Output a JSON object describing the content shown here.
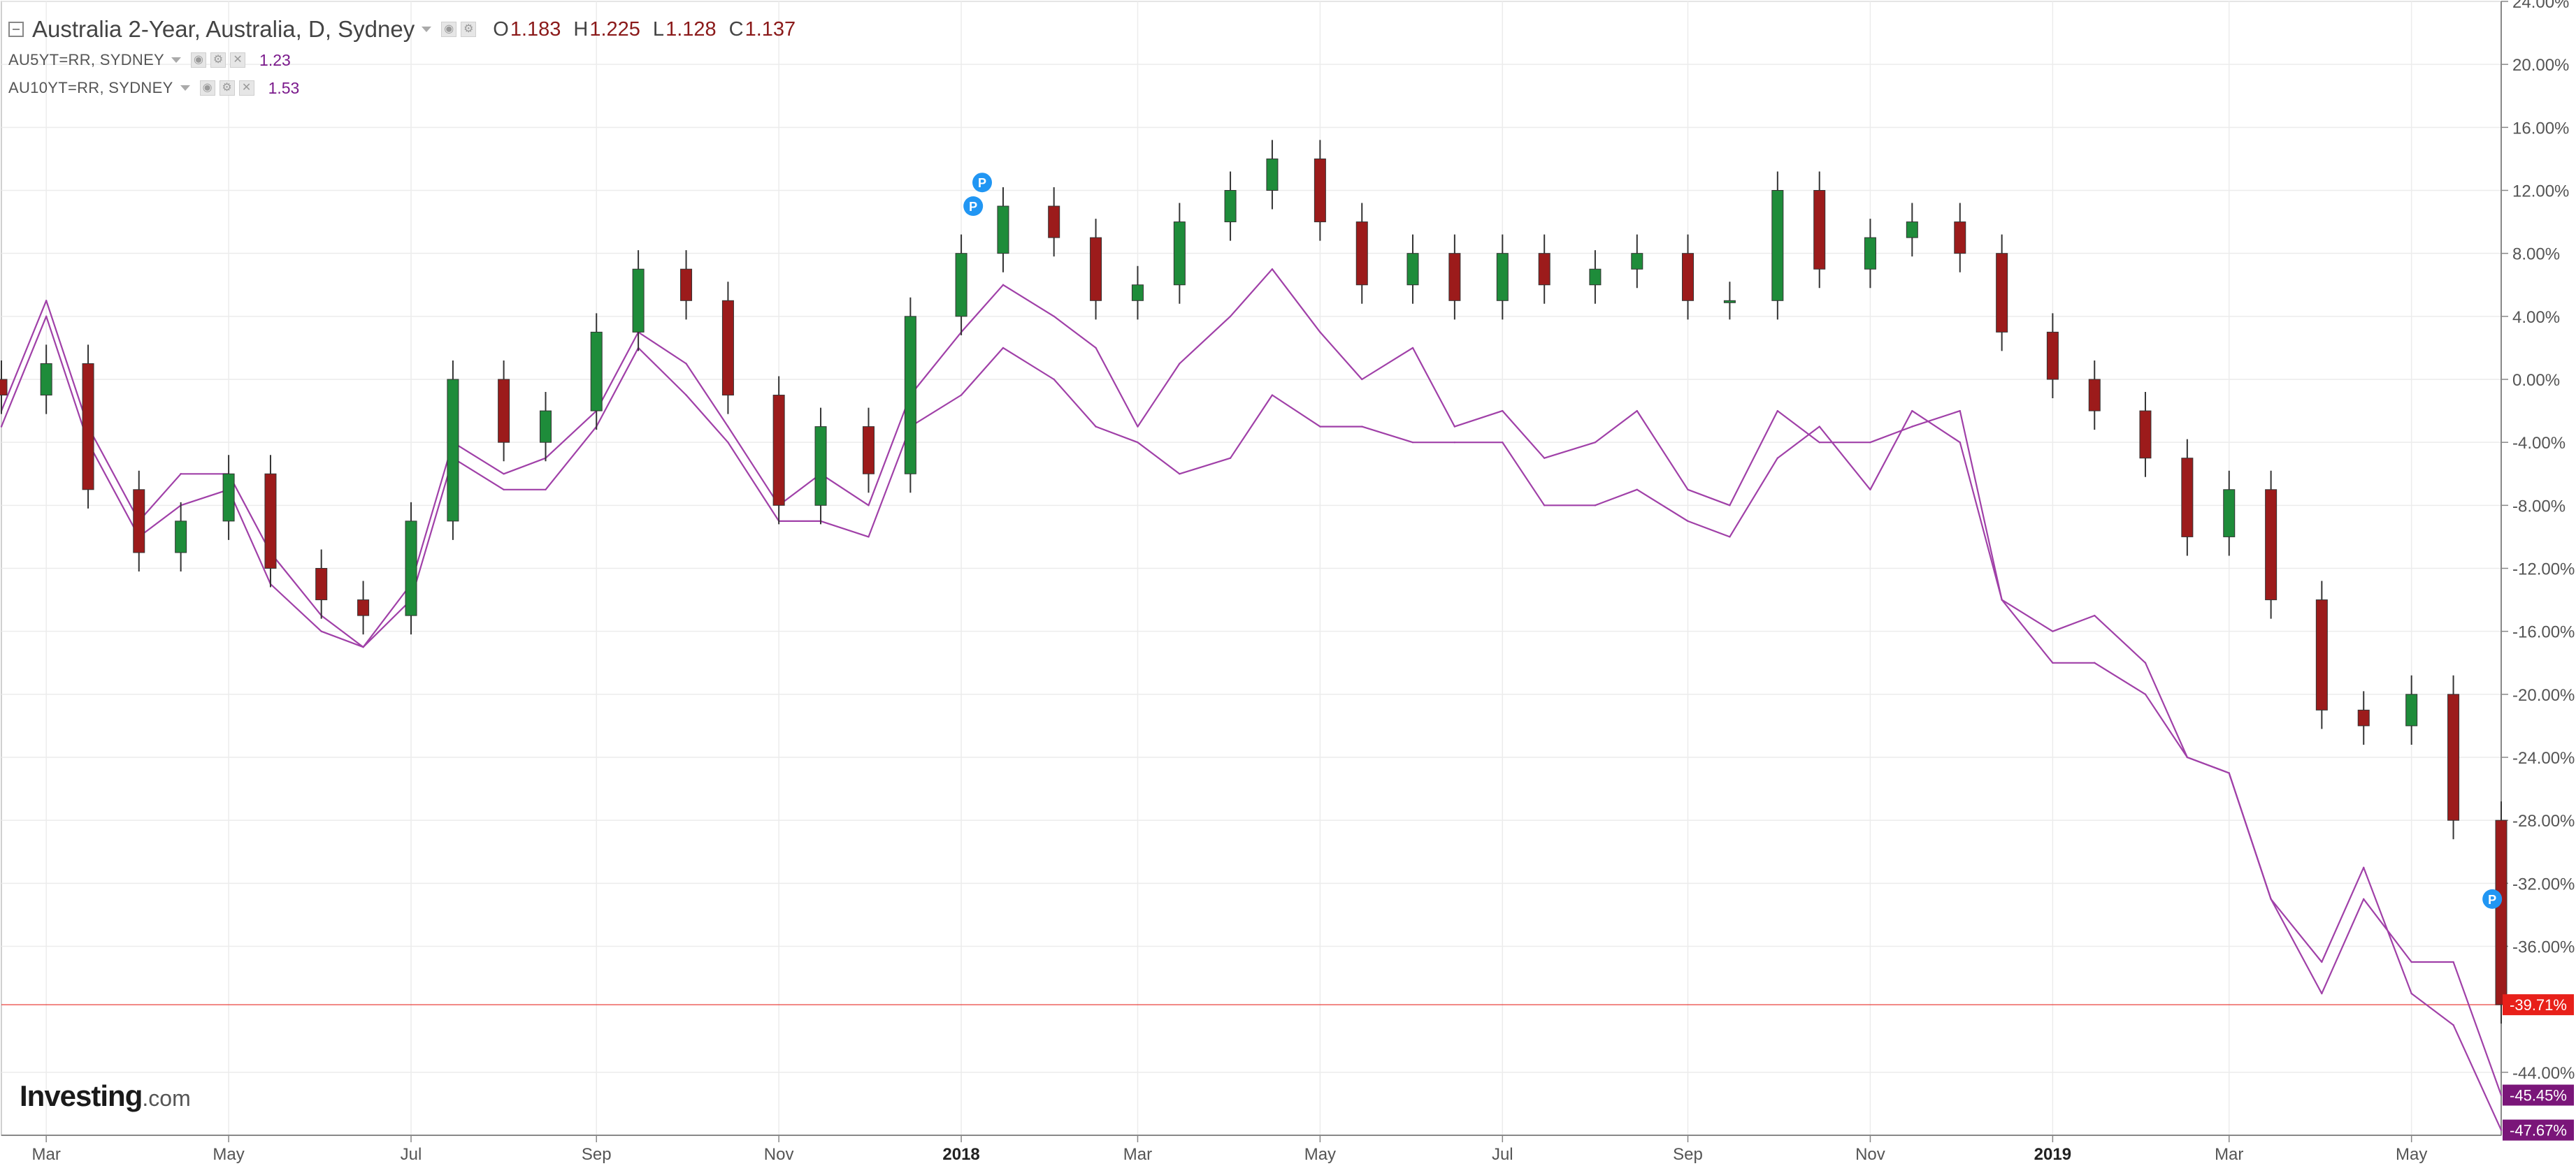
{
  "legend": {
    "main_title": "Australia 2-Year, Australia, D, Sydney",
    "ohlc": {
      "o_label": "O",
      "o": "1.183",
      "h_label": "H",
      "h": "1.225",
      "l_label": "L",
      "l": "1.128",
      "c_label": "C",
      "c": "1.137"
    },
    "sub": [
      {
        "label": "AU5YT=RR, SYDNEY",
        "value": "1.23"
      },
      {
        "label": "AU10YT=RR, SYDNEY",
        "value": "1.53"
      }
    ]
  },
  "logo": {
    "text": "Investing",
    "suffix": ".com"
  },
  "colors": {
    "up": "#1e8c3a",
    "down": "#9c1b1b",
    "compare_line": "#a040a8",
    "last_price": "#e8201a",
    "label_bg": "#7a1679"
  },
  "icons": [
    "collapse-icon",
    "caret-down-icon",
    "settings-icon",
    "visibility-icon",
    "close-icon",
    "publication-marker-icon"
  ],
  "chart_data": {
    "type": "line",
    "y_axis": {
      "unit": "%",
      "min": -48,
      "max": 24,
      "ticks": [
        "24.00%",
        "20.00%",
        "16.00%",
        "12.00%",
        "8.00%",
        "4.00%",
        "0.00%",
        "-4.00%",
        "-8.00%",
        "-12.00%",
        "-16.00%",
        "-20.00%",
        "-24.00%",
        "-28.00%",
        "-32.00%",
        "-36.00%",
        "-44.00%"
      ],
      "tick_values": [
        24,
        20,
        16,
        12,
        8,
        4,
        0,
        -4,
        -8,
        -12,
        -16,
        -20,
        -24,
        -28,
        -32,
        -36,
        -44
      ]
    },
    "x_axis": {
      "labels": [
        "Mar",
        "May",
        "Jul",
        "Sep",
        "Nov",
        "2018",
        "Mar",
        "May",
        "Jul",
        "Sep",
        "Nov",
        "2019",
        "Mar",
        "May"
      ],
      "label_dates": [
        "2017-03-01",
        "2017-05-01",
        "2017-07-01",
        "2017-09-01",
        "2017-11-01",
        "2018-01-01",
        "2018-03-01",
        "2018-05-01",
        "2018-07-01",
        "2018-09-01",
        "2018-11-01",
        "2019-01-01",
        "2019-03-01",
        "2019-05-01"
      ],
      "start": "2017-02-14",
      "end": "2019-05-31"
    },
    "grid": true,
    "series": [
      {
        "name": "Australia 2-Year",
        "style": "candles",
        "x": [
          "2017-02-14",
          "2017-03-01",
          "2017-03-15",
          "2017-04-01",
          "2017-04-15",
          "2017-05-01",
          "2017-05-15",
          "2017-06-01",
          "2017-06-15",
          "2017-07-01",
          "2017-07-15",
          "2017-08-01",
          "2017-08-15",
          "2017-09-01",
          "2017-09-15",
          "2017-10-01",
          "2017-10-15",
          "2017-11-01",
          "2017-11-15",
          "2017-12-01",
          "2017-12-15",
          "2018-01-01",
          "2018-01-15",
          "2018-02-01",
          "2018-02-15",
          "2018-03-01",
          "2018-03-15",
          "2018-04-01",
          "2018-04-15",
          "2018-05-01",
          "2018-05-15",
          "2018-06-01",
          "2018-06-15",
          "2018-07-01",
          "2018-07-15",
          "2018-08-01",
          "2018-08-15",
          "2018-09-01",
          "2018-09-15",
          "2018-10-01",
          "2018-10-15",
          "2018-11-01",
          "2018-11-15",
          "2018-12-01",
          "2018-12-15",
          "2019-01-01",
          "2019-01-15",
          "2019-02-01",
          "2019-02-15",
          "2019-03-01",
          "2019-03-15",
          "2019-04-01",
          "2019-04-15",
          "2019-05-01",
          "2019-05-15",
          "2019-05-31"
        ],
        "y": [
          -1,
          1,
          -7,
          -11,
          -9,
          -6,
          -12,
          -14,
          -15,
          -9,
          0,
          -4,
          -2,
          3,
          7,
          5,
          -1,
          -8,
          -3,
          -6,
          4,
          8,
          11,
          9,
          5,
          6,
          10,
          12,
          14,
          10,
          6,
          8,
          5,
          8,
          6,
          7,
          8,
          5,
          5,
          12,
          7,
          9,
          10,
          8,
          3,
          0,
          -2,
          -5,
          -10,
          -7,
          -14,
          -21,
          -22,
          -20,
          -28,
          -39.71
        ]
      },
      {
        "name": "AU5YT=RR, SYDNEY",
        "style": "line",
        "x": [
          "2017-02-14",
          "2017-03-01",
          "2017-03-15",
          "2017-04-01",
          "2017-04-15",
          "2017-05-01",
          "2017-05-15",
          "2017-06-01",
          "2017-06-15",
          "2017-07-01",
          "2017-07-15",
          "2017-08-01",
          "2017-08-15",
          "2017-09-01",
          "2017-09-15",
          "2017-10-01",
          "2017-10-15",
          "2017-11-01",
          "2017-11-15",
          "2017-12-01",
          "2017-12-15",
          "2018-01-01",
          "2018-01-15",
          "2018-02-01",
          "2018-02-15",
          "2018-03-01",
          "2018-03-15",
          "2018-04-01",
          "2018-04-15",
          "2018-05-01",
          "2018-05-15",
          "2018-06-01",
          "2018-06-15",
          "2018-07-01",
          "2018-07-15",
          "2018-08-01",
          "2018-08-15",
          "2018-09-01",
          "2018-09-15",
          "2018-10-01",
          "2018-10-15",
          "2018-11-01",
          "2018-11-15",
          "2018-12-01",
          "2018-12-15",
          "2019-01-01",
          "2019-01-15",
          "2019-02-01",
          "2019-02-15",
          "2019-03-01",
          "2019-03-15",
          "2019-04-01",
          "2019-04-15",
          "2019-05-01",
          "2019-05-15",
          "2019-05-31"
        ],
        "y": [
          -2,
          5,
          -3,
          -9,
          -6,
          -6,
          -11,
          -15,
          -17,
          -13,
          -4,
          -6,
          -5,
          -2,
          3,
          1,
          -3,
          -8,
          -6,
          -8,
          -1,
          3,
          6,
          4,
          2,
          -3,
          1,
          4,
          7,
          3,
          0,
          2,
          -3,
          -2,
          -5,
          -4,
          -2,
          -7,
          -8,
          -2,
          -4,
          -4,
          -3,
          -2,
          -14,
          -16,
          -15,
          -18,
          -24,
          -25,
          -33,
          -39,
          -33,
          -37,
          -37,
          -45.45
        ]
      },
      {
        "name": "AU10YT=RR, SYDNEY",
        "style": "line",
        "x": [
          "2017-02-14",
          "2017-03-01",
          "2017-03-15",
          "2017-04-01",
          "2017-04-15",
          "2017-05-01",
          "2017-05-15",
          "2017-06-01",
          "2017-06-15",
          "2017-07-01",
          "2017-07-15",
          "2017-08-01",
          "2017-08-15",
          "2017-09-01",
          "2017-09-15",
          "2017-10-01",
          "2017-10-15",
          "2017-11-01",
          "2017-11-15",
          "2017-12-01",
          "2017-12-15",
          "2018-01-01",
          "2018-01-15",
          "2018-02-01",
          "2018-02-15",
          "2018-03-01",
          "2018-03-15",
          "2018-04-01",
          "2018-04-15",
          "2018-05-01",
          "2018-05-15",
          "2018-06-01",
          "2018-06-15",
          "2018-07-01",
          "2018-07-15",
          "2018-08-01",
          "2018-08-15",
          "2018-09-01",
          "2018-09-15",
          "2018-10-01",
          "2018-10-15",
          "2018-11-01",
          "2018-11-15",
          "2018-12-01",
          "2018-12-15",
          "2019-01-01",
          "2019-01-15",
          "2019-02-01",
          "2019-02-15",
          "2019-03-01",
          "2019-03-15",
          "2019-04-01",
          "2019-04-15",
          "2019-05-01",
          "2019-05-15",
          "2019-05-31"
        ],
        "y": [
          -3,
          4,
          -4,
          -10,
          -8,
          -7,
          -13,
          -16,
          -17,
          -14,
          -5,
          -7,
          -7,
          -3,
          2,
          -1,
          -4,
          -9,
          -9,
          -10,
          -3,
          -1,
          2,
          0,
          -3,
          -4,
          -6,
          -5,
          -1,
          -3,
          -3,
          -4,
          -4,
          -4,
          -8,
          -8,
          -7,
          -9,
          -10,
          -5,
          -3,
          -7,
          -2,
          -4,
          -14,
          -18,
          -18,
          -20,
          -24,
          -25,
          -33,
          -37,
          -31,
          -39,
          -41,
          -47.67
        ]
      }
    ],
    "last_labels": [
      {
        "series": "Australia 2-Year",
        "text": "-39.71%",
        "value": -39.71
      },
      {
        "series": "AU5YT=RR, SYDNEY",
        "text": "-45.45%",
        "value": -45.45
      },
      {
        "series": "AU10YT=RR, SYDNEY",
        "text": "-47.67%",
        "value": -47.67
      }
    ],
    "markers": [
      {
        "label": "P",
        "date": "2018-01-08",
        "value": 12.5
      },
      {
        "label": "P",
        "date": "2018-01-05",
        "value": 11
      },
      {
        "label": "P",
        "date": "2019-05-28",
        "value": -33
      }
    ]
  }
}
